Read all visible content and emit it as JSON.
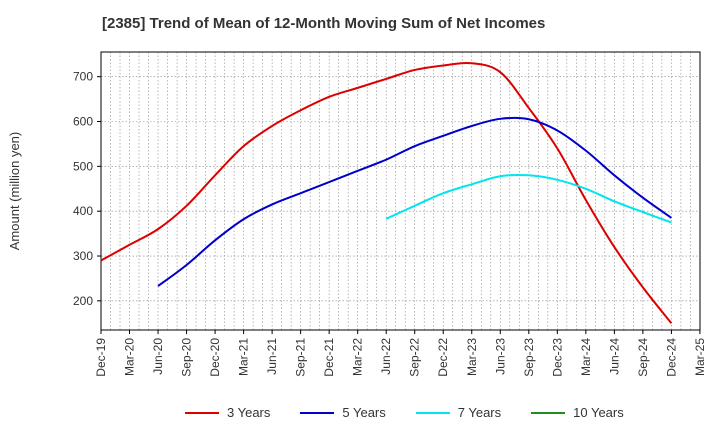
{
  "chart_data": {
    "type": "line",
    "title": "[2385]  Trend of Mean of 12-Month Moving Sum of Net Incomes",
    "ylabel": "Amount (million yen)",
    "xlabel": "",
    "ylim": [
      135,
      755
    ],
    "yticks": [
      200,
      300,
      400,
      500,
      600,
      700
    ],
    "x_ticks": [
      "Dec-19",
      "Mar-20",
      "Jun-20",
      "Sep-20",
      "Dec-20",
      "Mar-21",
      "Jun-21",
      "Sep-21",
      "Dec-21",
      "Mar-22",
      "Jun-22",
      "Sep-22",
      "Dec-22",
      "Mar-23",
      "Jun-23",
      "Sep-23",
      "Dec-23",
      "Mar-24",
      "Jun-24",
      "Sep-24",
      "Dec-24",
      "Mar-25"
    ],
    "grid": true,
    "legend_position": "bottom",
    "series": [
      {
        "name": "3 Years",
        "color": "#dd0000",
        "points": [
          [
            "Dec-19",
            290
          ],
          [
            "Mar-20",
            325
          ],
          [
            "Jun-20",
            360
          ],
          [
            "Sep-20",
            412
          ],
          [
            "Dec-20",
            480
          ],
          [
            "Mar-21",
            545
          ],
          [
            "Jun-21",
            590
          ],
          [
            "Sep-21",
            625
          ],
          [
            "Dec-21",
            655
          ],
          [
            "Mar-22",
            675
          ],
          [
            "Jun-22",
            695
          ],
          [
            "Sep-22",
            715
          ],
          [
            "Dec-22",
            725
          ],
          [
            "Mar-23",
            730
          ],
          [
            "Jun-23",
            710
          ],
          [
            "Sep-23",
            630
          ],
          [
            "Dec-23",
            540
          ],
          [
            "Mar-24",
            425
          ],
          [
            "Jun-24",
            320
          ],
          [
            "Sep-24",
            230
          ],
          [
            "Dec-24",
            150
          ]
        ]
      },
      {
        "name": "5 Years",
        "color": "#0000cc",
        "points": [
          [
            "Jun-20",
            233
          ],
          [
            "Sep-20",
            280
          ],
          [
            "Dec-20",
            335
          ],
          [
            "Mar-21",
            382
          ],
          [
            "Jun-21",
            415
          ],
          [
            "Sep-21",
            440
          ],
          [
            "Dec-21",
            465
          ],
          [
            "Mar-22",
            490
          ],
          [
            "Jun-22",
            515
          ],
          [
            "Sep-22",
            545
          ],
          [
            "Dec-22",
            568
          ],
          [
            "Mar-23",
            590
          ],
          [
            "Jun-23",
            606
          ],
          [
            "Sep-23",
            605
          ],
          [
            "Dec-23",
            580
          ],
          [
            "Mar-24",
            535
          ],
          [
            "Jun-24",
            480
          ],
          [
            "Sep-24",
            430
          ],
          [
            "Dec-24",
            385
          ]
        ]
      },
      {
        "name": "7 Years",
        "color": "#00e5ee",
        "points": [
          [
            "Jun-22",
            383
          ],
          [
            "Sep-22",
            412
          ],
          [
            "Dec-22",
            440
          ],
          [
            "Mar-23",
            460
          ],
          [
            "Jun-23",
            478
          ],
          [
            "Sep-23",
            480
          ],
          [
            "Dec-23",
            470
          ],
          [
            "Mar-24",
            450
          ],
          [
            "Jun-24",
            422
          ],
          [
            "Sep-24",
            398
          ],
          [
            "Dec-24",
            375
          ]
        ]
      },
      {
        "name": "10 Years",
        "color": "#228b22",
        "points": []
      }
    ]
  }
}
